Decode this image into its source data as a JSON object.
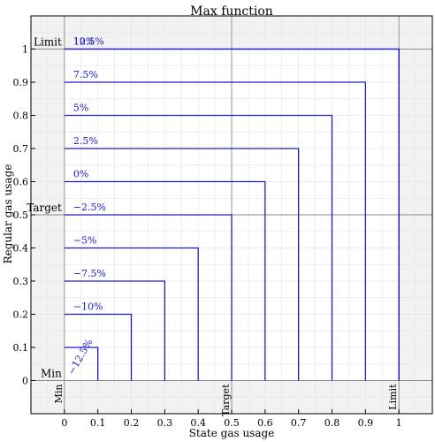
{
  "chart_data": {
    "type": "line",
    "title": "Max function",
    "xlabel": "State gas usage",
    "ylabel": "Regular gas usage",
    "xlim": [
      -0.1,
      1.1
    ],
    "ylim": [
      -0.1,
      1.1
    ],
    "x_ticks": [
      0,
      0.1,
      0.2,
      0.3,
      0.4,
      0.5,
      0.6,
      0.7,
      0.8,
      0.9,
      1
    ],
    "y_ticks": [
      0,
      0.1,
      0.2,
      0.3,
      0.4,
      0.5,
      0.6,
      0.7,
      0.8,
      0.9,
      1
    ],
    "grid": true,
    "reference_lines": {
      "x": [
        {
          "value": 0,
          "label": "Min"
        },
        {
          "value": 0.5,
          "label": "Target"
        },
        {
          "value": 1,
          "label": "Limit"
        }
      ],
      "y": [
        {
          "value": 0,
          "label": "Min"
        },
        {
          "value": 0.5,
          "label": "Target"
        },
        {
          "value": 1,
          "label": "Limit"
        }
      ]
    },
    "contours": [
      {
        "level": 0.1,
        "label": "−12.5%"
      },
      {
        "level": 0.2,
        "label": "−10%"
      },
      {
        "level": 0.3,
        "label": "−7.5%"
      },
      {
        "level": 0.4,
        "label": "−5%"
      },
      {
        "level": 0.5,
        "label": "−2.5%"
      },
      {
        "level": 0.6,
        "label": "0%"
      },
      {
        "level": 0.7,
        "label": "2.5%"
      },
      {
        "level": 0.8,
        "label": "5%"
      },
      {
        "level": 0.9,
        "label": "7.5%"
      },
      {
        "level": 1.0,
        "label": "10%"
      },
      {
        "level": 1.1,
        "label": "12.5%"
      }
    ],
    "colors": {
      "contour": "#1a1acc",
      "shade": "#f2f2f2",
      "grid": "#e6e6e6",
      "reference": "#888888"
    }
  }
}
